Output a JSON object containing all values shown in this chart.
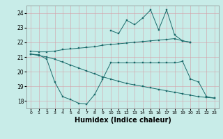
{
  "x": [
    0,
    1,
    2,
    3,
    4,
    5,
    6,
    7,
    8,
    9,
    10,
    11,
    12,
    13,
    14,
    15,
    16,
    17,
    18,
    19,
    20,
    21,
    22,
    23
  ],
  "line1": [
    null,
    null,
    null,
    null,
    null,
    null,
    null,
    null,
    null,
    null,
    22.8,
    22.6,
    23.5,
    23.2,
    23.65,
    24.2,
    22.85,
    24.2,
    22.5,
    22.1,
    22.0,
    null,
    null,
    null
  ],
  "line2": [
    21.4,
    21.35,
    21.35,
    21.4,
    21.5,
    21.55,
    21.6,
    21.65,
    21.7,
    21.8,
    21.85,
    21.9,
    21.95,
    22.0,
    22.05,
    22.1,
    22.15,
    22.2,
    22.25,
    22.1,
    22.0,
    null,
    null,
    null
  ],
  "line3": [
    21.2,
    21.1,
    21.0,
    20.85,
    20.65,
    20.45,
    20.25,
    20.05,
    19.85,
    19.65,
    19.5,
    19.35,
    19.2,
    19.1,
    19.0,
    18.9,
    18.8,
    18.7,
    18.6,
    18.5,
    18.4,
    18.3,
    18.25,
    18.2
  ],
  "line4": [
    21.2,
    21.15,
    20.85,
    19.3,
    18.3,
    18.1,
    17.85,
    17.8,
    18.45,
    19.5,
    20.6,
    20.6,
    20.6,
    20.6,
    20.6,
    20.6,
    20.6,
    20.6,
    20.6,
    20.7,
    19.5,
    19.3,
    18.3,
    18.2
  ],
  "color": "#1a6b6b",
  "bg_color": "#c8ece8",
  "grid_color": "#d4a0a8",
  "xlabel": "Humidex (Indice chaleur)",
  "xlabel_fontsize": 7,
  "ylim": [
    17.5,
    24.5
  ],
  "xlim": [
    -0.5,
    23.5
  ],
  "yticks": [
    18,
    19,
    20,
    21,
    22,
    23,
    24
  ],
  "xticks": [
    0,
    1,
    2,
    3,
    4,
    5,
    6,
    7,
    8,
    9,
    10,
    11,
    12,
    13,
    14,
    15,
    16,
    17,
    18,
    19,
    20,
    21,
    22,
    23
  ]
}
